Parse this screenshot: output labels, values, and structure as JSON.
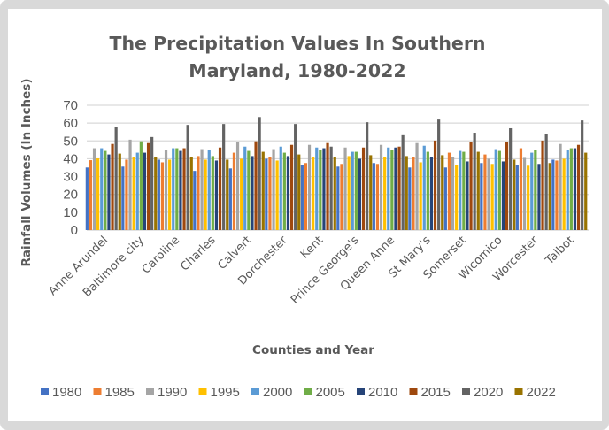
{
  "chart_data": {
    "type": "bar",
    "title": "The Precipitation Values  In Southern Maryland, 1980-2022",
    "title_lines": [
      "The Precipitation Values  In Southern",
      "Maryland, 1980-2022"
    ],
    "xlabel": "Counties and Year",
    "ylabel": "Rainfall  Volumes (In Inches)",
    "ylim": [
      0,
      70
    ],
    "yticks": [
      0,
      10,
      20,
      30,
      40,
      50,
      60,
      70
    ],
    "grid": true,
    "legend_position": "bottom",
    "categories": [
      "Anne Arundel",
      "Baltimore city",
      "Caroline",
      "Charles",
      "Calvert",
      "Dorchester",
      "Kent",
      "Prince George's",
      "Queen Anne",
      "St Mary's",
      "Somerset",
      "Wicomico",
      "Worcester",
      "Talbot"
    ],
    "series": [
      {
        "name": "1980",
        "color": "#4472c4",
        "values": [
          35.1,
          35.6,
          39.5,
          33.2,
          34.6,
          40.0,
          36.6,
          35.6,
          37.6,
          35.1,
          35.1,
          37.6,
          36.6,
          39.5
        ]
      },
      {
        "name": "1985",
        "color": "#ed7d31",
        "values": [
          39.2,
          39.5,
          38.0,
          41.5,
          43.4,
          41.0,
          37.6,
          37.1,
          37.1,
          41.0,
          43.4,
          42.4,
          45.9,
          39.0
        ]
      },
      {
        "name": "1990",
        "color": "#a5a5a5",
        "values": [
          45.9,
          50.7,
          44.9,
          45.4,
          49.3,
          45.4,
          47.8,
          46.3,
          47.8,
          48.8,
          41.0,
          40.0,
          40.5,
          48.3
        ]
      },
      {
        "name": "1995",
        "color": "#ffc000",
        "values": [
          40.2,
          41.0,
          39.5,
          39.5,
          40.0,
          39.0,
          41.0,
          41.5,
          41.0,
          38.0,
          36.6,
          37.1,
          36.1,
          40.0
        ]
      },
      {
        "name": "2000",
        "color": "#5b9bd5",
        "values": [
          45.9,
          43.4,
          45.9,
          44.9,
          46.8,
          46.8,
          46.3,
          43.9,
          46.3,
          47.3,
          44.4,
          45.4,
          43.4,
          44.9
        ]
      },
      {
        "name": "2005",
        "color": "#70ad47",
        "values": [
          44.4,
          49.8,
          45.9,
          41.5,
          44.4,
          43.4,
          44.9,
          43.9,
          44.9,
          43.9,
          43.9,
          44.4,
          44.9,
          45.9
        ]
      },
      {
        "name": "2010",
        "color": "#264478",
        "values": [
          42.4,
          43.4,
          44.4,
          39.0,
          41.5,
          41.5,
          45.9,
          40.0,
          46.3,
          41.0,
          38.5,
          38.5,
          37.1,
          45.9
        ]
      },
      {
        "name": "2015",
        "color": "#9e480e",
        "values": [
          48.3,
          48.8,
          45.9,
          46.3,
          49.8,
          47.8,
          48.8,
          46.3,
          46.8,
          50.2,
          49.3,
          49.3,
          50.2,
          47.8
        ]
      },
      {
        "name": "2020",
        "color": "#636363",
        "values": [
          58.0,
          52.2,
          59.0,
          59.5,
          63.4,
          59.5,
          46.8,
          60.5,
          53.2,
          62.0,
          54.6,
          57.1,
          53.7,
          61.5
        ]
      },
      {
        "name": "2022",
        "color": "#997300",
        "values": [
          42.9,
          41.0,
          41.0,
          39.5,
          43.9,
          42.4,
          41.0,
          42.0,
          41.5,
          42.0,
          43.9,
          39.5,
          37.6,
          43.4
        ]
      }
    ]
  }
}
